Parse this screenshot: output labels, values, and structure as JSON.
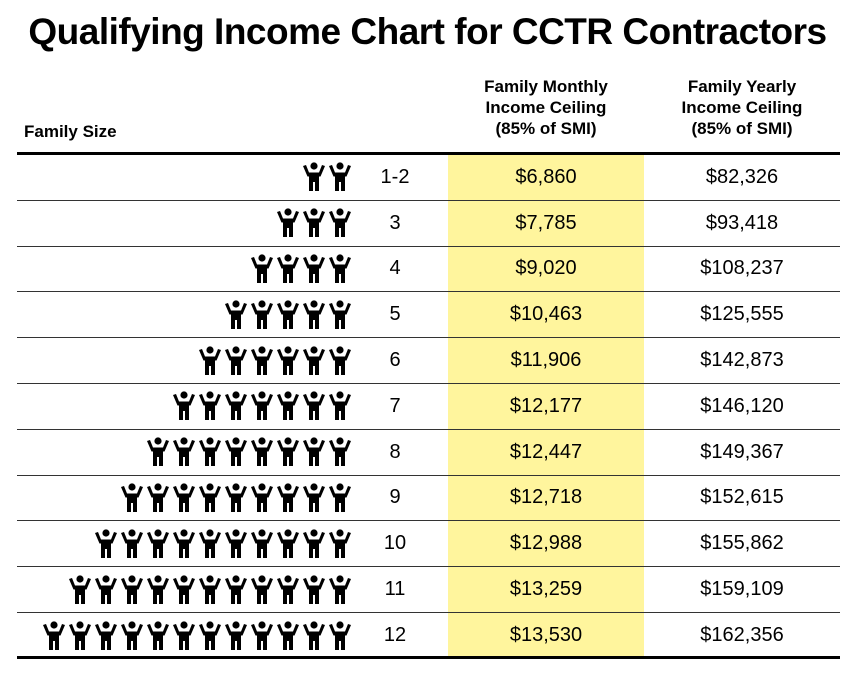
{
  "title": "Qualifying Income Chart for CCTR Contractors",
  "headers": {
    "family_size": "Family Size",
    "monthly": [
      "Family Monthly",
      "Income Ceiling",
      "(85% of SMI)"
    ],
    "yearly": [
      "Family Yearly",
      "Income Ceiling",
      "(85% of SMI)"
    ]
  },
  "colors": {
    "highlight": "#fff59d",
    "rule": "#000000"
  },
  "rows": [
    {
      "size": "1-2",
      "icon_count": 2,
      "monthly": "$6,860",
      "yearly": "$82,326"
    },
    {
      "size": "3",
      "icon_count": 3,
      "monthly": "$7,785",
      "yearly": "$93,418"
    },
    {
      "size": "4",
      "icon_count": 4,
      "monthly": "$9,020",
      "yearly": "$108,237"
    },
    {
      "size": "5",
      "icon_count": 5,
      "monthly": "$10,463",
      "yearly": "$125,555"
    },
    {
      "size": "6",
      "icon_count": 6,
      "monthly": "$11,906",
      "yearly": "$142,873"
    },
    {
      "size": "7",
      "icon_count": 7,
      "monthly": "$12,177",
      "yearly": "$146,120"
    },
    {
      "size": "8",
      "icon_count": 8,
      "monthly": "$12,447",
      "yearly": "$149,367"
    },
    {
      "size": "9",
      "icon_count": 9,
      "monthly": "$12,718",
      "yearly": "$152,615"
    },
    {
      "size": "10",
      "icon_count": 10,
      "monthly": "$12,988",
      "yearly": "$155,862"
    },
    {
      "size": "11",
      "icon_count": 11,
      "monthly": "$13,259",
      "yearly": "$159,109"
    },
    {
      "size": "12",
      "icon_count": 12,
      "monthly": "$13,530",
      "yearly": "$162,356"
    }
  ]
}
